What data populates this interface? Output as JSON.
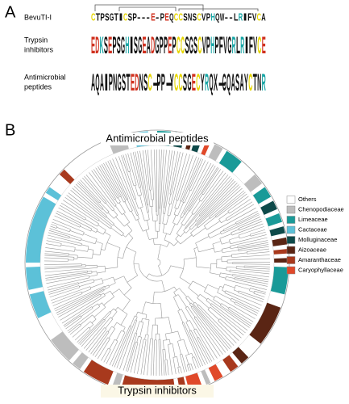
{
  "panel_a": {
    "label": "A",
    "rows": [
      {
        "name": [
          "BevuTI-I"
        ],
        "logo": false,
        "sequence": [
          "C",
          "T",
          "P",
          "S",
          "G",
          "T",
          "I",
          "C",
          "S",
          "P",
          "-",
          "-",
          "-",
          "E",
          "-",
          "P",
          "E",
          "Q",
          "C",
          "C",
          "S",
          "N",
          "S",
          "C",
          "V",
          "P",
          "H",
          "Q",
          "W",
          "-",
          "-",
          "L",
          "R",
          "I",
          "F",
          "V",
          "C",
          "A"
        ]
      },
      {
        "name": [
          "Trypsin",
          "inhibitors"
        ],
        "logo": true,
        "sequence": [
          "E",
          "D",
          "K",
          "S",
          "E",
          "P",
          "S",
          "G",
          "H",
          "I",
          "S",
          "G",
          "E",
          "A",
          "D",
          "G",
          "P",
          "P",
          "E",
          "P",
          "C",
          "C",
          "S",
          "G",
          "S",
          "C",
          "V",
          "P",
          "H",
          "P",
          "F",
          "V",
          "G",
          "R",
          "L",
          "R",
          "I",
          "F",
          "V",
          "C",
          "E"
        ]
      },
      {
        "name": [
          "Antimicrobial",
          "peptides"
        ],
        "logo": true,
        "sequence": [
          "A",
          "Q",
          "A",
          "I",
          "P",
          "N",
          "G",
          "S",
          "T",
          "E",
          "D",
          "N",
          "S",
          "C",
          "-",
          "P",
          "P",
          "-",
          "Y",
          "C",
          "C",
          "S",
          "G",
          "E",
          "C",
          "Y",
          "R",
          "Q",
          "X",
          "-",
          "G",
          "Q",
          "A",
          "S",
          "A",
          "Y",
          "C",
          "T",
          "N",
          "R"
        ]
      }
    ]
  },
  "panel_b": {
    "label": "B",
    "arc_labels": [
      "Antimicrobial peptides",
      "Trypsin inhibitors"
    ],
    "legend": [
      {
        "name": "Others",
        "color": "#ffffff"
      },
      {
        "name": "Chenopodiaceae",
        "color": "#bdbdbd"
      },
      {
        "name": "Limeaceae",
        "color": "#1a9a98"
      },
      {
        "name": "Cactaceae",
        "color": "#5cc1d8"
      },
      {
        "name": "Molluginaceae",
        "color": "#0e4a4a"
      },
      {
        "name": "Aizoaceae",
        "color": "#5a2514"
      },
      {
        "name": "Amaranthaceae",
        "color": "#a8391d"
      },
      {
        "name": "Caryophyllaceae",
        "color": "#e0492a"
      }
    ]
  }
}
